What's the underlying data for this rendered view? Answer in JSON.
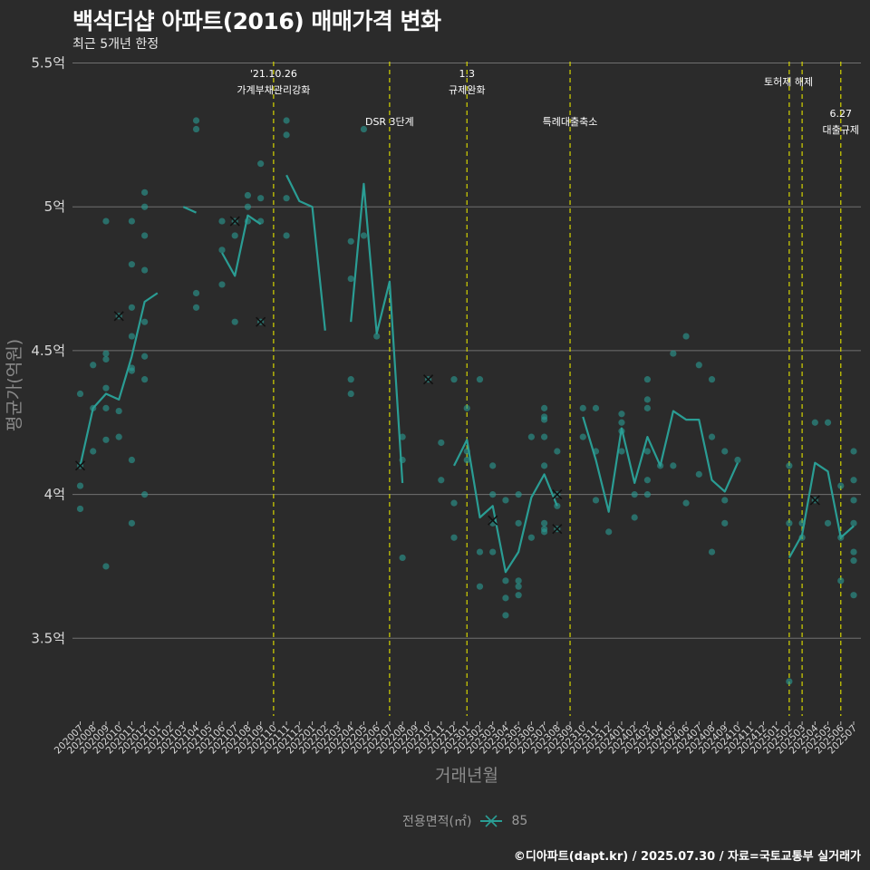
{
  "title": "백석더샵 아파트(2016) 매매가격 변화",
  "subtitle": "최근 5개년 한정",
  "caption": "©디아파트(dapt.kr) / 2025.07.30 / 자료=국토교통부 실거래가",
  "legend": {
    "title": "전용면적(㎡)",
    "label": "85"
  },
  "colors": {
    "background": "#2b2b2b",
    "series": "#2a9d94",
    "grid": "#707070",
    "event_line": "#d4d400",
    "text": "#ffffff"
  },
  "chart_data": {
    "type": "line",
    "title": "백석더샵 아파트(2016) 매매가격 변화",
    "xlabel": "거래년월",
    "ylabel": "평균가(억원)",
    "ylim": [
      3.23,
      5.53
    ],
    "yticks": [
      3.5,
      4.0,
      4.5,
      5.0,
      5.5
    ],
    "ytick_labels": [
      "3.5억",
      "4억",
      "4.5억",
      "5억",
      "5.5억"
    ],
    "categories": [
      "202007",
      "202008",
      "202009",
      "202010",
      "202011",
      "202012",
      "202101",
      "202102",
      "202103",
      "202104",
      "202105",
      "202106",
      "202107",
      "202108",
      "202109",
      "202110",
      "202111",
      "202112",
      "202201",
      "202202",
      "202203",
      "202204",
      "202205",
      "202206",
      "202207",
      "202208",
      "202209",
      "202210",
      "202211",
      "202212",
      "202301",
      "202302",
      "202303",
      "202304",
      "202305",
      "202306",
      "202307",
      "202308",
      "202309",
      "202310",
      "202311",
      "202312",
      "202401",
      "202402",
      "202403",
      "202404",
      "202405",
      "202406",
      "202407",
      "202408",
      "202409",
      "202410",
      "202411",
      "202412",
      "202501",
      "202502",
      "202503",
      "202504",
      "202505",
      "202506",
      "202507"
    ],
    "series": [
      {
        "name": "85",
        "values": [
          4.1,
          4.3,
          4.35,
          4.33,
          4.48,
          4.67,
          4.7,
          null,
          5.0,
          4.98,
          null,
          4.84,
          4.76,
          4.97,
          4.94,
          null,
          5.11,
          5.02,
          5.0,
          4.57,
          null,
          4.6,
          5.08,
          4.56,
          4.74,
          4.04,
          null,
          null,
          null,
          4.1,
          4.19,
          3.92,
          3.96,
          3.73,
          3.8,
          3.99,
          4.07,
          3.96,
          null,
          4.27,
          4.12,
          3.94,
          4.23,
          4.04,
          4.2,
          4.1,
          4.29,
          4.26,
          4.26,
          4.05,
          4.01,
          4.11,
          null,
          null,
          null,
          3.78,
          3.86,
          4.11,
          4.08,
          3.85,
          3.89
        ]
      }
    ],
    "scatter": [
      [
        "202007",
        4.1
      ],
      [
        "202007",
        4.03
      ],
      [
        "202007",
        3.95
      ],
      [
        "202007",
        4.35
      ],
      [
        "202008",
        4.45
      ],
      [
        "202008",
        4.3
      ],
      [
        "202008",
        4.15
      ],
      [
        "202009",
        4.95
      ],
      [
        "202009",
        4.49
      ],
      [
        "202009",
        4.47
      ],
      [
        "202009",
        4.37
      ],
      [
        "202009",
        4.3
      ],
      [
        "202009",
        4.19
      ],
      [
        "202009",
        3.75
      ],
      [
        "202010",
        4.62
      ],
      [
        "202010",
        4.29
      ],
      [
        "202010",
        4.2
      ],
      [
        "202011",
        4.95
      ],
      [
        "202011",
        4.8
      ],
      [
        "202011",
        4.65
      ],
      [
        "202011",
        4.55
      ],
      [
        "202011",
        4.44
      ],
      [
        "202011",
        4.43
      ],
      [
        "202011",
        4.12
      ],
      [
        "202011",
        3.9
      ],
      [
        "202012",
        5.05
      ],
      [
        "202012",
        5.0
      ],
      [
        "202012",
        4.9
      ],
      [
        "202012",
        4.78
      ],
      [
        "202012",
        4.6
      ],
      [
        "202012",
        4.48
      ],
      [
        "202012",
        4.4
      ],
      [
        "202012",
        4.0
      ],
      [
        "202104",
        5.3
      ],
      [
        "202104",
        5.27
      ],
      [
        "202104",
        4.7
      ],
      [
        "202104",
        4.65
      ],
      [
        "202106",
        4.95
      ],
      [
        "202106",
        4.85
      ],
      [
        "202106",
        4.73
      ],
      [
        "202107",
        4.95
      ],
      [
        "202107",
        4.9
      ],
      [
        "202107",
        4.6
      ],
      [
        "202108",
        5.04
      ],
      [
        "202108",
        5.0
      ],
      [
        "202108",
        4.95
      ],
      [
        "202109",
        5.15
      ],
      [
        "202109",
        5.03
      ],
      [
        "202109",
        4.95
      ],
      [
        "202109",
        4.6
      ],
      [
        "202111",
        5.3
      ],
      [
        "202111",
        5.25
      ],
      [
        "202111",
        5.03
      ],
      [
        "202111",
        4.9
      ],
      [
        "202204",
        4.88
      ],
      [
        "202204",
        4.75
      ],
      [
        "202204",
        4.4
      ],
      [
        "202204",
        4.35
      ],
      [
        "202205",
        5.27
      ],
      [
        "202205",
        4.9
      ],
      [
        "202206",
        4.55
      ],
      [
        "202208",
        4.2
      ],
      [
        "202208",
        4.12
      ],
      [
        "202208",
        3.78
      ],
      [
        "202210",
        4.4
      ],
      [
        "202211",
        4.18
      ],
      [
        "202211",
        4.05
      ],
      [
        "202301",
        4.3
      ],
      [
        "202301",
        4.15
      ],
      [
        "202301",
        4.12
      ],
      [
        "202212",
        4.4
      ],
      [
        "202212",
        3.97
      ],
      [
        "202212",
        3.85
      ],
      [
        "202302",
        4.4
      ],
      [
        "202302",
        3.8
      ],
      [
        "202302",
        3.68
      ],
      [
        "202303",
        4.1
      ],
      [
        "202303",
        4.0
      ],
      [
        "202303",
        3.9
      ],
      [
        "202303",
        3.8
      ],
      [
        "202304",
        3.98
      ],
      [
        "202304",
        3.7
      ],
      [
        "202304",
        3.64
      ],
      [
        "202304",
        3.58
      ],
      [
        "202305",
        4.0
      ],
      [
        "202305",
        3.9
      ],
      [
        "202305",
        3.7
      ],
      [
        "202305",
        3.68
      ],
      [
        "202305",
        3.65
      ],
      [
        "202306",
        4.2
      ],
      [
        "202306",
        3.85
      ],
      [
        "202307",
        4.3
      ],
      [
        "202307",
        4.27
      ],
      [
        "202307",
        4.26
      ],
      [
        "202307",
        4.2
      ],
      [
        "202307",
        4.1
      ],
      [
        "202307",
        3.9
      ],
      [
        "202307",
        3.88
      ],
      [
        "202307",
        3.87
      ],
      [
        "202308",
        4.15
      ],
      [
        "202308",
        4.0
      ],
      [
        "202308",
        3.96
      ],
      [
        "202308",
        3.88
      ],
      [
        "202310",
        4.3
      ],
      [
        "202310",
        4.2
      ],
      [
        "202311",
        4.3
      ],
      [
        "202311",
        4.15
      ],
      [
        "202311",
        3.98
      ],
      [
        "202312",
        3.87
      ],
      [
        "202401",
        4.28
      ],
      [
        "202401",
        4.25
      ],
      [
        "202401",
        4.22
      ],
      [
        "202401",
        4.15
      ],
      [
        "202402",
        4.0
      ],
      [
        "202402",
        3.92
      ],
      [
        "202403",
        4.4
      ],
      [
        "202403",
        4.33
      ],
      [
        "202403",
        4.3
      ],
      [
        "202403",
        4.15
      ],
      [
        "202403",
        4.05
      ],
      [
        "202403",
        4.0
      ],
      [
        "202404",
        4.1
      ],
      [
        "202405",
        4.49
      ],
      [
        "202405",
        4.1
      ],
      [
        "202406",
        4.55
      ],
      [
        "202406",
        3.97
      ],
      [
        "202407",
        4.45
      ],
      [
        "202407",
        4.07
      ],
      [
        "202408",
        4.4
      ],
      [
        "202408",
        4.2
      ],
      [
        "202408",
        3.8
      ],
      [
        "202409",
        4.15
      ],
      [
        "202409",
        3.98
      ],
      [
        "202409",
        3.9
      ],
      [
        "202410",
        4.12
      ],
      [
        "202502",
        4.1
      ],
      [
        "202502",
        3.9
      ],
      [
        "202502",
        3.35
      ],
      [
        "202503",
        3.9
      ],
      [
        "202503",
        3.85
      ],
      [
        "202504",
        4.25
      ],
      [
        "202504",
        3.98
      ],
      [
        "202505",
        4.25
      ],
      [
        "202505",
        3.9
      ],
      [
        "202506",
        4.03
      ],
      [
        "202506",
        3.85
      ],
      [
        "202506",
        3.7
      ],
      [
        "202507",
        4.15
      ],
      [
        "202507",
        4.05
      ],
      [
        "202507",
        3.98
      ],
      [
        "202507",
        3.9
      ],
      [
        "202507",
        3.8
      ],
      [
        "202507",
        3.77
      ],
      [
        "202507",
        3.65
      ]
    ],
    "crosses": [
      [
        "202007",
        4.1
      ],
      [
        "202010",
        4.62
      ],
      [
        "202107",
        4.95
      ],
      [
        "202109",
        4.6
      ],
      [
        "202210",
        4.4
      ],
      [
        "202303",
        3.91
      ],
      [
        "202308",
        4.0
      ],
      [
        "202308",
        3.88
      ],
      [
        "202504",
        3.98
      ]
    ],
    "events": [
      {
        "x": "202110",
        "lines": [
          "'21.10.26",
          "가계부채관리강화"
        ],
        "row": 0
      },
      {
        "x": "202207",
        "lines": [
          "DSR 3단계"
        ],
        "row": 1
      },
      {
        "x": "202301",
        "lines": [
          "1.3",
          "규제완화"
        ],
        "row": 0
      },
      {
        "x": "202309",
        "lines": [
          "특례대출축소"
        ],
        "row": 1
      },
      {
        "x": "202502",
        "lines": [],
        "row": 0
      },
      {
        "x": "202503",
        "lines": [
          "토허제 해제"
        ],
        "row": 0,
        "shift": -15
      },
      {
        "x": "202506",
        "lines": [
          "6.27",
          "대출규제"
        ],
        "row": 1
      }
    ]
  }
}
